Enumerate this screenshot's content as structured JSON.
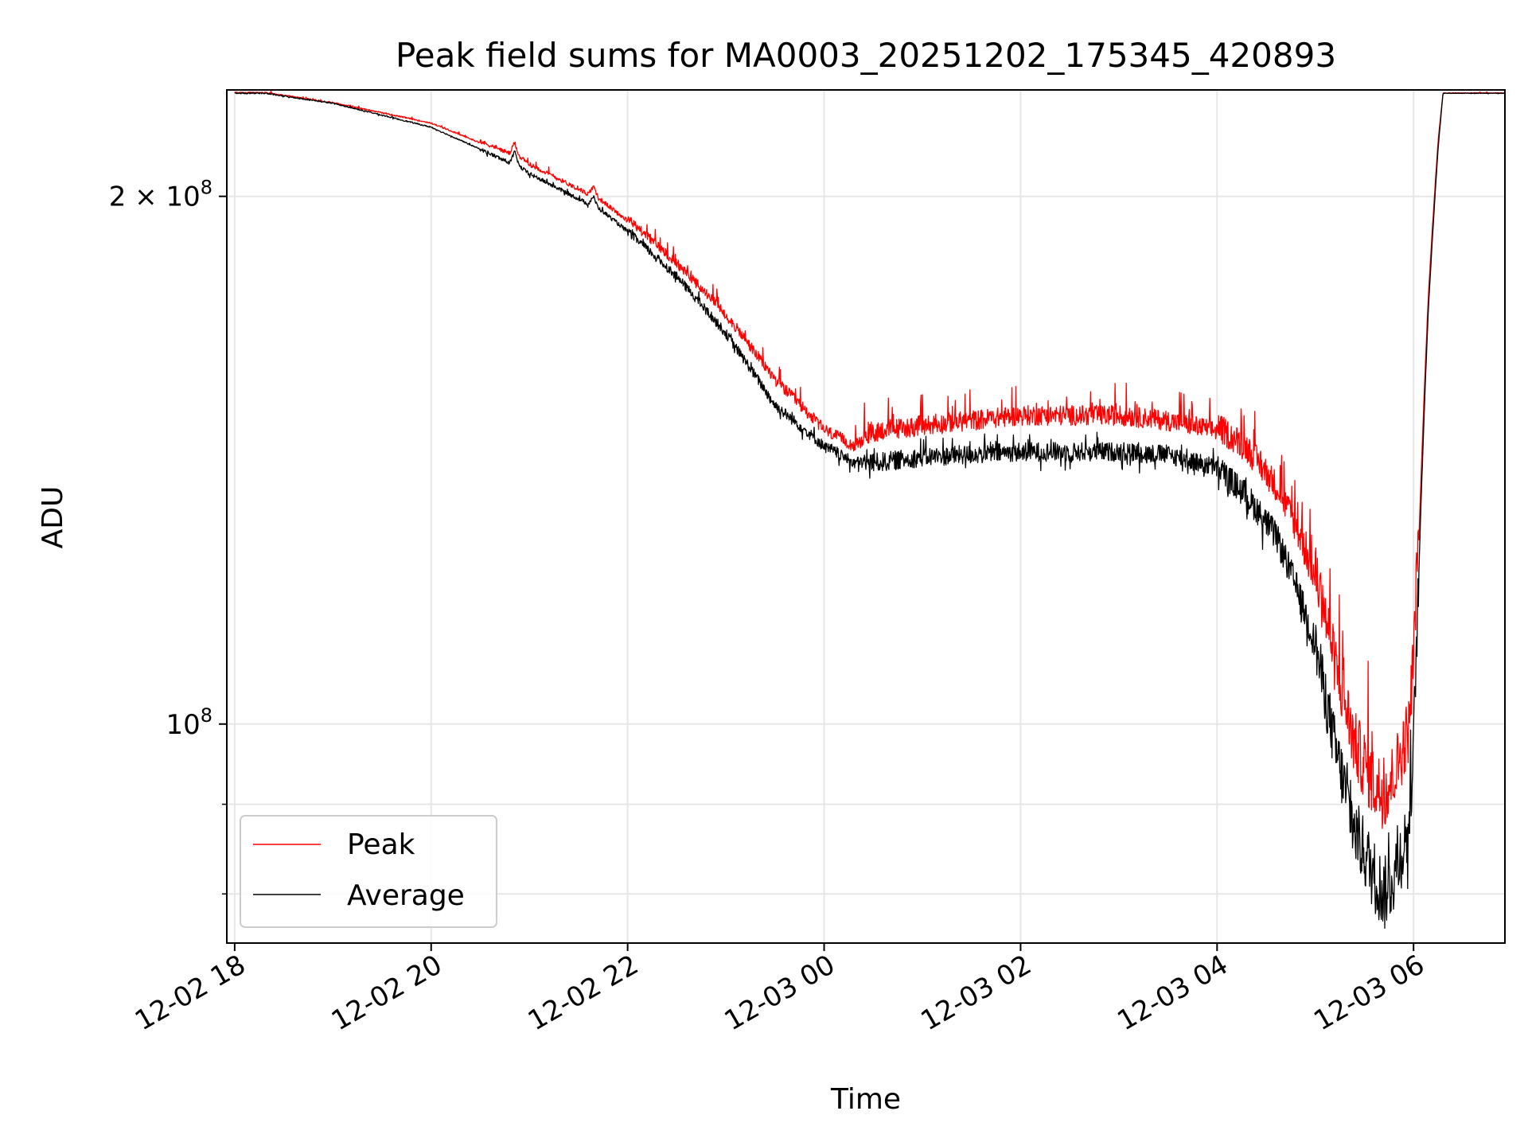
{
  "chart_data": {
    "type": "line",
    "title": "Peak field sums for MA0003_20251202_175345_420893",
    "xlabel": "Time",
    "ylabel": "ADU",
    "yscale": "log",
    "ylim": [
      75000000,
      230000000
    ],
    "xlim": [
      -0.08,
      12.93
    ],
    "grid": true,
    "x_unit": "hours since 12-02 18:00",
    "xticks": [
      {
        "value": 0,
        "label": "12-02 18"
      },
      {
        "value": 2,
        "label": "12-02 20"
      },
      {
        "value": 4,
        "label": "12-02 22"
      },
      {
        "value": 6,
        "label": "12-03 00"
      },
      {
        "value": 8,
        "label": "12-03 02"
      },
      {
        "value": 10,
        "label": "12-03 04"
      },
      {
        "value": 12,
        "label": "12-03 06"
      }
    ],
    "yticks_major": [
      {
        "value": 100000000,
        "base": "10",
        "exp": "8",
        "coef": ""
      },
      {
        "value": 200000000,
        "base": "10",
        "exp": "8",
        "coef": "2 × "
      }
    ],
    "yticks_minor": [
      80000000,
      90000000
    ],
    "legend_position": "lower-left",
    "series": [
      {
        "name": "Peak",
        "color": "#ff0000",
        "noise_amp": 4000000,
        "x": [
          0.0,
          0.3,
          1.0,
          2.0,
          2.8,
          2.85,
          2.9,
          3.0,
          3.3,
          3.6,
          3.65,
          3.7,
          4.0,
          4.5,
          5.0,
          5.5,
          6.0,
          6.3,
          6.55,
          7.0,
          7.5,
          8.0,
          8.5,
          9.0,
          9.5,
          10.0,
          10.3,
          10.6,
          10.8,
          11.0,
          11.2,
          11.4,
          11.6,
          11.7,
          11.8,
          11.95,
          12.0,
          12.05,
          12.15,
          12.25,
          12.3,
          12.35,
          12.93
        ],
        "y": [
          229000000,
          229000000,
          226000000,
          220000000,
          211000000,
          214000000,
          210000000,
          208000000,
          204000000,
          200000000,
          202000000,
          199000000,
          193000000,
          182000000,
          170000000,
          156000000,
          146000000,
          143000000,
          145000000,
          146000000,
          147000000,
          148000000,
          148000000,
          148000000,
          147000000,
          145000000,
          141000000,
          134000000,
          127000000,
          118000000,
          104000000,
          93000000,
          88000000,
          87000000,
          89000000,
          95000000,
          105000000,
          125000000,
          175000000,
          215000000,
          229000000,
          229000000,
          229000000
        ]
      },
      {
        "name": "Average",
        "color": "#000000",
        "noise_amp": 1800000,
        "x": [
          0.0,
          0.3,
          1.0,
          2.0,
          2.8,
          2.85,
          2.9,
          3.0,
          3.3,
          3.6,
          3.65,
          3.7,
          4.0,
          4.5,
          5.0,
          5.5,
          6.0,
          6.3,
          6.55,
          7.0,
          7.5,
          8.0,
          8.5,
          9.0,
          9.5,
          10.0,
          10.3,
          10.6,
          10.8,
          11.0,
          11.2,
          11.4,
          11.6,
          11.7,
          11.8,
          11.95,
          12.0,
          12.05,
          12.15,
          12.25,
          12.3,
          12.35,
          12.93
        ],
        "y": [
          229000000,
          229000000,
          226000000,
          219000000,
          209000000,
          212000000,
          208000000,
          206000000,
          202000000,
          198000000,
          200000000,
          197000000,
          191000000,
          180000000,
          167000000,
          152000000,
          144000000,
          141000000,
          141000000,
          142000000,
          142500000,
          143000000,
          143000000,
          143000000,
          142500000,
          140000000,
          135000000,
          128000000,
          120000000,
          111000000,
          97000000,
          87000000,
          82000000,
          80000000,
          82000000,
          87000000,
          97000000,
          120000000,
          172000000,
          213000000,
          229000000,
          229000000,
          229000000
        ]
      }
    ]
  }
}
